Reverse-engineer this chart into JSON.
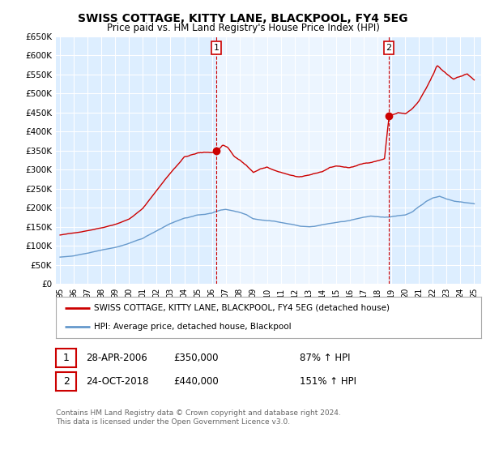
{
  "title": "SWISS COTTAGE, KITTY LANE, BLACKPOOL, FY4 5EG",
  "subtitle": "Price paid vs. HM Land Registry's House Price Index (HPI)",
  "background_color": "#ffffff",
  "plot_bg_color": "#ddeeff",
  "grid_color": "#ffffff",
  "red_line_color": "#cc0000",
  "blue_line_color": "#6699cc",
  "shade_color": "#ddeeff",
  "marker1_date": 2006.32,
  "marker1_value": 350000,
  "marker1_label": "1",
  "marker2_date": 2018.82,
  "marker2_value": 440000,
  "marker2_label": "2",
  "legend_entry1": "SWISS COTTAGE, KITTY LANE, BLACKPOOL, FY4 5EG (detached house)",
  "legend_entry2": "HPI: Average price, detached house, Blackpool",
  "note1_label": "1",
  "note1_date": "28-APR-2006",
  "note1_price": "£350,000",
  "note1_hpi": "87% ↑ HPI",
  "note2_label": "2",
  "note2_date": "24-OCT-2018",
  "note2_price": "£440,000",
  "note2_hpi": "151% ↑ HPI",
  "copyright": "Contains HM Land Registry data © Crown copyright and database right 2024.\nThis data is licensed under the Open Government Licence v3.0.",
  "yticks": [
    0,
    50000,
    100000,
    150000,
    200000,
    250000,
    300000,
    350000,
    400000,
    450000,
    500000,
    550000,
    600000,
    650000
  ],
  "ytick_labels": [
    "£0",
    "£50K",
    "£100K",
    "£150K",
    "£200K",
    "£250K",
    "£300K",
    "£350K",
    "£400K",
    "£450K",
    "£500K",
    "£550K",
    "£600K",
    "£650K"
  ],
  "ylim": [
    0,
    650000
  ],
  "xlim_start": 1995.0,
  "xlim_end": 2025.5,
  "xtick_labels": [
    "95",
    "96",
    "97",
    "98",
    "99",
    "00",
    "01",
    "02",
    "03",
    "04",
    "05",
    "06",
    "07",
    "08",
    "09",
    "10",
    "11",
    "12",
    "13",
    "14",
    "15",
    "16",
    "17",
    "18",
    "19",
    "20",
    "21",
    "22",
    "23",
    "24",
    "25"
  ],
  "xtick_years": [
    1995,
    1996,
    1997,
    1998,
    1999,
    2000,
    2001,
    2002,
    2003,
    2004,
    2005,
    2006,
    2007,
    2008,
    2009,
    2010,
    2011,
    2012,
    2013,
    2014,
    2015,
    2016,
    2017,
    2018,
    2019,
    2020,
    2021,
    2022,
    2023,
    2024,
    2025
  ]
}
